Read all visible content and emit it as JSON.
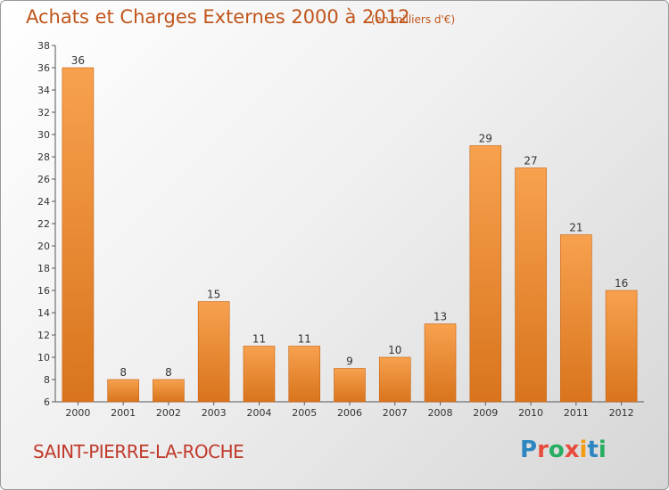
{
  "title": "Achats et Charges Externes 2000 à 2012",
  "units": "(en milliers d'€)",
  "town": "SAINT-PIERRE-LA-ROCHE",
  "logo": {
    "letters": [
      "P",
      "r",
      "o",
      "x",
      "i",
      "t",
      "i"
    ],
    "colors": [
      "#2e86c1",
      "#e74c3c",
      "#27ae60",
      "#e74c3c",
      "#f39c12",
      "#2e86c1",
      "#27ae60"
    ]
  },
  "colors": {
    "bar_top": "#f7a14e",
    "bar_bottom": "#d9741d",
    "bar_edge": "#c96210",
    "text": "#c0551a"
  },
  "chart_data": {
    "type": "bar",
    "title": "Achats et Charges Externes 2000 à 2012",
    "categories": [
      "2000",
      "2001",
      "2002",
      "2003",
      "2004",
      "2005",
      "2006",
      "2007",
      "2008",
      "2009",
      "2010",
      "2011",
      "2012"
    ],
    "values": [
      36,
      8,
      8,
      15,
      11,
      11,
      9,
      10,
      13,
      29,
      27,
      21,
      16
    ],
    "ylim": [
      6,
      38
    ],
    "yticks": [
      6,
      8,
      10,
      12,
      14,
      16,
      18,
      20,
      22,
      24,
      26,
      28,
      30,
      32,
      34,
      36,
      38
    ],
    "grid": false,
    "data_labels": true
  }
}
